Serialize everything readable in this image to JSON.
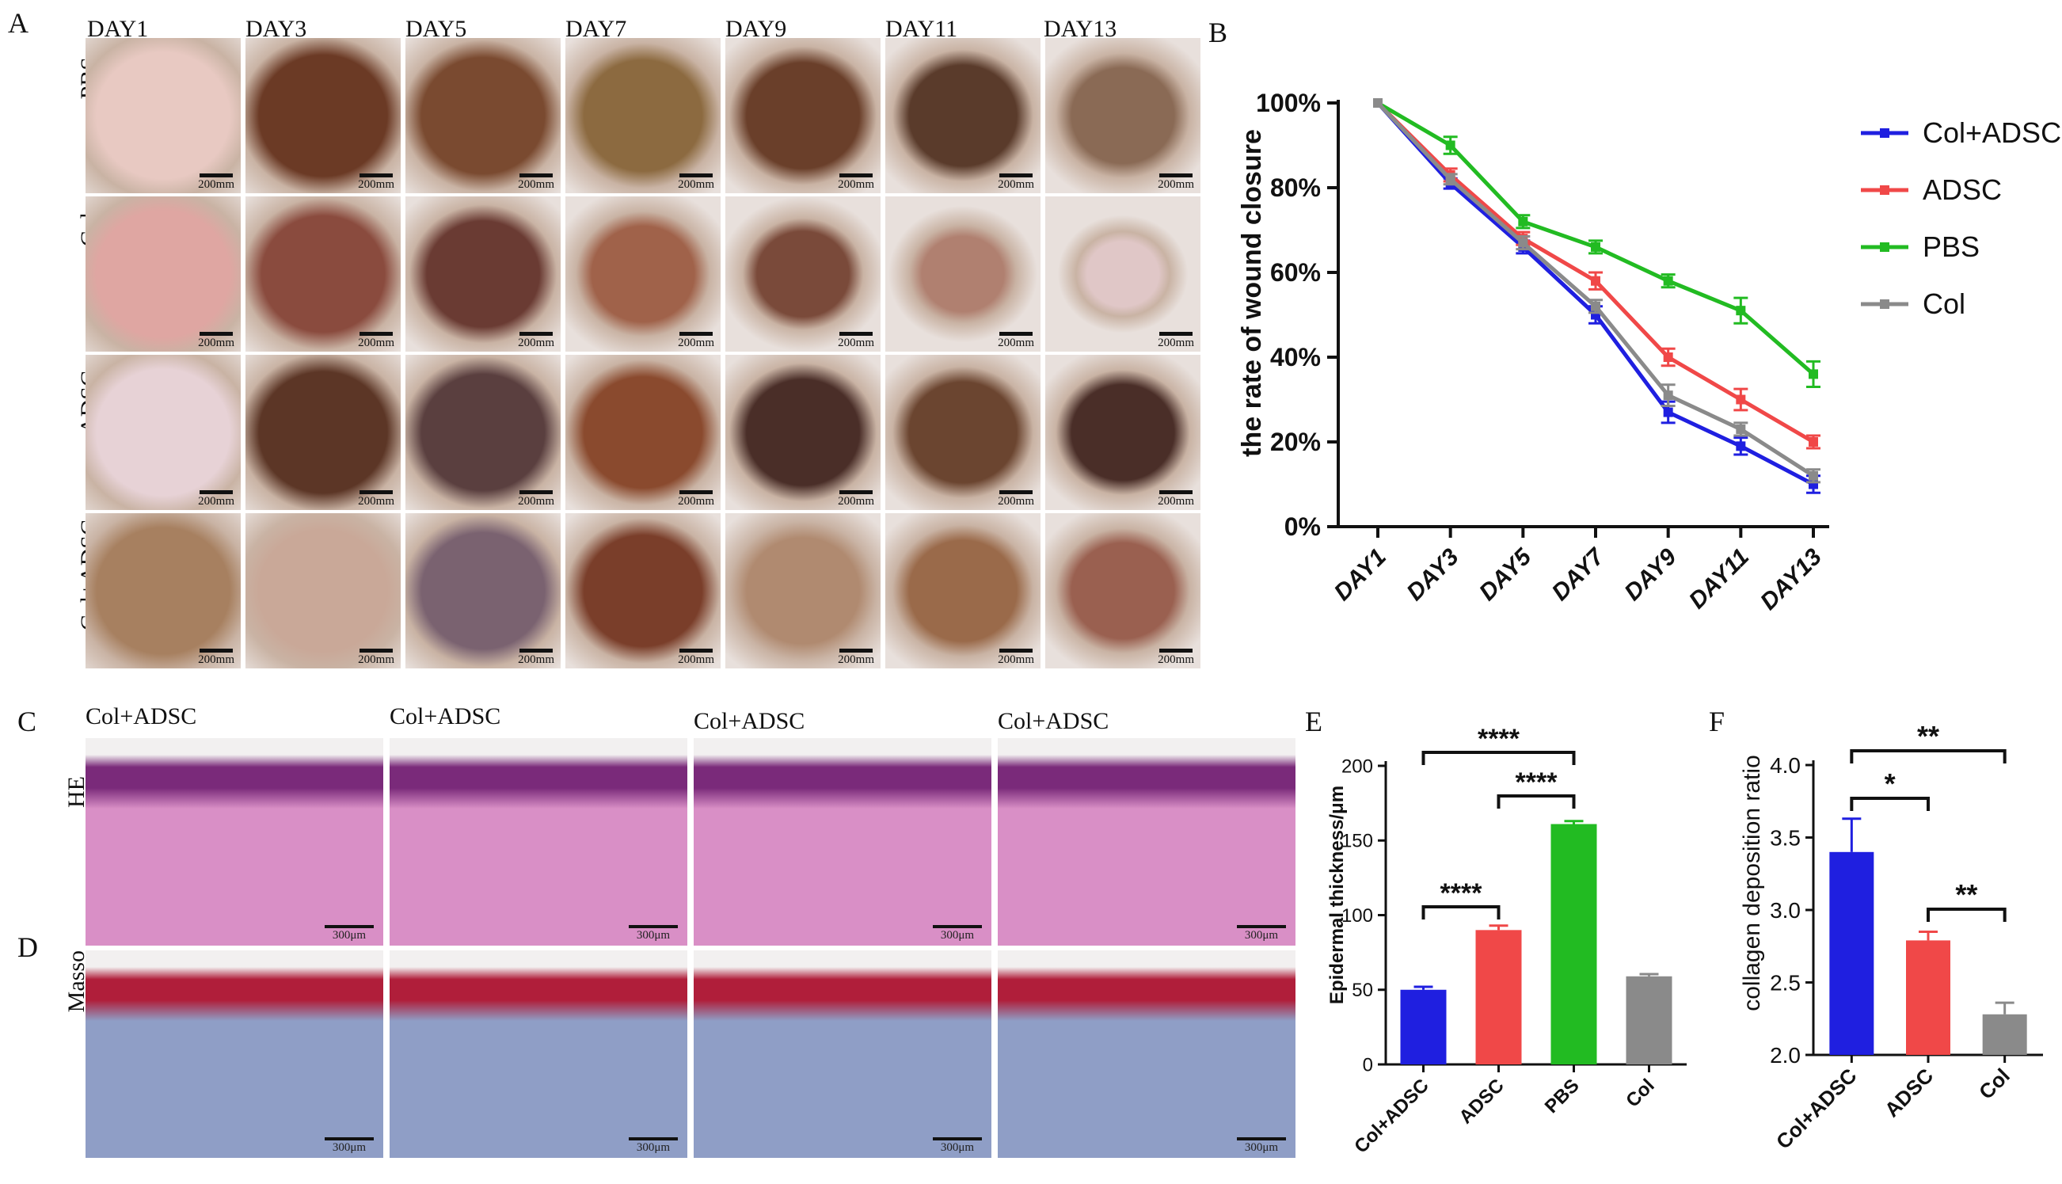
{
  "panels": {
    "A": "A",
    "B": "B",
    "C": "C",
    "D": "D",
    "E": "E",
    "F": "F"
  },
  "panel_a": {
    "days": [
      "DAY1",
      "DAY3",
      "DAY5",
      "DAY7",
      "DAY9",
      "DAY11",
      "DAY13"
    ],
    "groups": [
      "PBS",
      "Col",
      "ADSC",
      "Col+ADSC"
    ],
    "scale_label": "200mm"
  },
  "panel_cd": {
    "column_labels": [
      "Col+ADSC",
      "Col+ADSC",
      "Col+ADSC",
      "Col+ADSC"
    ],
    "row_labels": [
      "HE",
      "Masso"
    ],
    "scale_label": "300μm"
  },
  "chart_data": [
    {
      "panel": "B",
      "type": "line",
      "ylabel": "the rate of wound closure",
      "xlabel": "",
      "categories": [
        "DAY1",
        "DAY3",
        "DAY5",
        "DAY7",
        "DAY9",
        "DAY11",
        "DAY13"
      ],
      "ylim": [
        0,
        100
      ],
      "yticks": [
        "0%",
        "20%",
        "40%",
        "60%",
        "80%",
        "100%"
      ],
      "legend_position": "right",
      "series": [
        {
          "name": "Col+ADSC",
          "color": "#1f1fe0",
          "values": [
            100,
            81,
            66,
            50,
            27,
            19,
            10
          ],
          "errors": [
            0,
            1.2,
            1.5,
            2,
            2.5,
            2,
            2
          ]
        },
        {
          "name": "ADSC",
          "color": "#f04848",
          "values": [
            100,
            83,
            68,
            58,
            40,
            30,
            20
          ],
          "errors": [
            0,
            1.5,
            1.5,
            2,
            2,
            2.5,
            1.5
          ]
        },
        {
          "name": "PBS",
          "color": "#22bb22",
          "values": [
            100,
            90,
            72,
            66,
            58,
            51,
            36
          ],
          "errors": [
            0,
            2,
            1.5,
            1.5,
            1.5,
            3,
            3
          ]
        },
        {
          "name": "Col",
          "color": "#8a8a8a",
          "values": [
            100,
            82,
            67,
            52,
            31,
            23,
            12
          ],
          "errors": [
            0,
            1.2,
            1.5,
            1.5,
            2.5,
            1.5,
            1.5
          ]
        }
      ]
    },
    {
      "panel": "E",
      "type": "bar",
      "ylabel": "Epidermal thickness/μm",
      "xlabel": "",
      "categories": [
        "Col+ADSC",
        "ADSC",
        "PBS",
        "Col"
      ],
      "colors": [
        "#1f1fe0",
        "#f04848",
        "#22bb22",
        "#8a8a8a"
      ],
      "values": [
        50,
        90,
        161,
        59
      ],
      "errors": [
        2,
        3,
        2,
        1.5
      ],
      "ylim": [
        0,
        200
      ],
      "yticks": [
        "0",
        "50",
        "100",
        "150",
        "200"
      ],
      "significance": [
        {
          "from": "Col+ADSC",
          "to": "PBS",
          "label": "****"
        },
        {
          "from": "ADSC",
          "to": "PBS",
          "label": "****"
        },
        {
          "from": "Col+ADSC",
          "to": "ADSC",
          "label": "****"
        }
      ]
    },
    {
      "panel": "F",
      "type": "bar",
      "ylabel": "collagen deposition ratio",
      "xlabel": "",
      "categories": [
        "Col+ADSC",
        "ADSC",
        "Col"
      ],
      "colors": [
        "#1f1fe0",
        "#f04848",
        "#8a8a8a"
      ],
      "values": [
        3.4,
        2.79,
        2.28
      ],
      "errors": [
        0.23,
        0.06,
        0.08
      ],
      "ylim": [
        2.0,
        4.0
      ],
      "yticks": [
        "2.0",
        "2.5",
        "3.0",
        "3.5",
        "4.0"
      ],
      "significance": [
        {
          "from": "Col+ADSC",
          "to": "Col",
          "label": "**"
        },
        {
          "from": "Col+ADSC",
          "to": "ADSC",
          "label": "*"
        },
        {
          "from": "ADSC",
          "to": "Col",
          "label": "**"
        }
      ]
    }
  ]
}
